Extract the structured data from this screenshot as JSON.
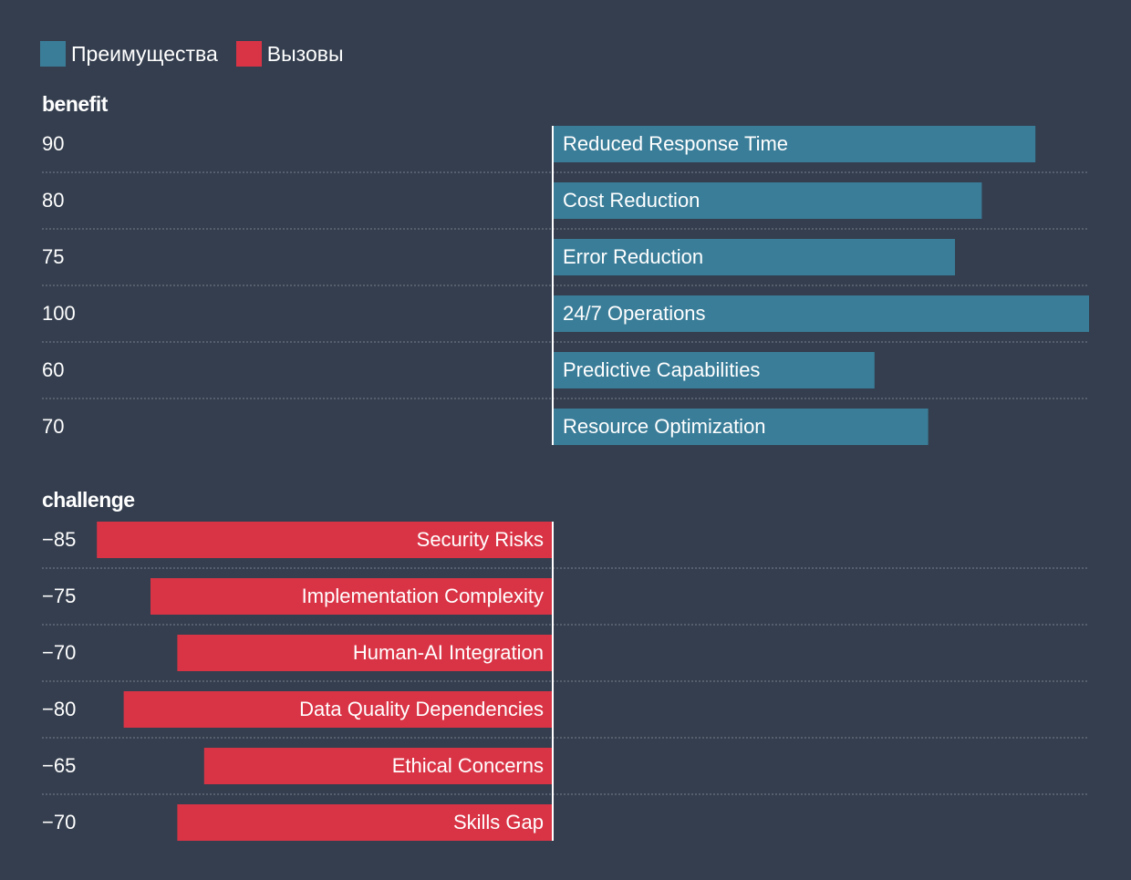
{
  "chart_data": {
    "type": "bar",
    "orientation": "horizontal",
    "legend": {
      "placement": "top-left",
      "items": [
        {
          "name": "Преимущества",
          "color": "#3a7d98"
        },
        {
          "name": "Вызовы",
          "color": "#d93446"
        }
      ]
    },
    "x_range": [
      -100,
      100
    ],
    "grid": true,
    "groups": [
      {
        "title": "benefit",
        "color": "#3a7d98",
        "bars": [
          {
            "label": "Reduced Response Time",
            "value": 90
          },
          {
            "label": "Cost Reduction",
            "value": 80
          },
          {
            "label": "Error Reduction",
            "value": 75
          },
          {
            "label": "24/7 Operations",
            "value": 100
          },
          {
            "label": "Predictive Capabilities",
            "value": 60
          },
          {
            "label": "Resource Optimization",
            "value": 70
          }
        ]
      },
      {
        "title": "challenge",
        "color": "#d93446",
        "bars": [
          {
            "label": "Security Risks",
            "value": -85
          },
          {
            "label": "Implementation Complexity",
            "value": -75
          },
          {
            "label": "Human-AI Integration",
            "value": -70
          },
          {
            "label": "Data Quality Dependencies",
            "value": -80
          },
          {
            "label": "Ethical Concerns",
            "value": -65
          },
          {
            "label": "Skills Gap",
            "value": -70
          }
        ]
      }
    ]
  },
  "colors": {
    "background": "#343e4e",
    "text": "#ffffff",
    "gridline": "#6b7380",
    "axis": "#ffffff"
  }
}
